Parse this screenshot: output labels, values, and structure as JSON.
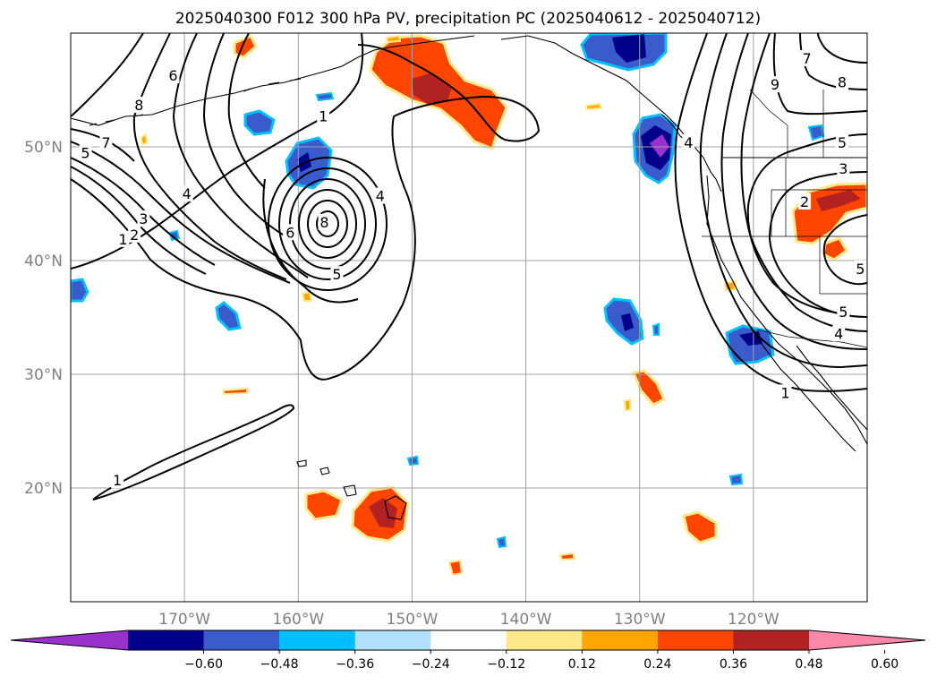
{
  "title": "2025040300 F012 300 hPa PV, precipitation PC (2025040612 - 2025040712)",
  "map": {
    "lon_range": [
      -180,
      -110
    ],
    "lat_range": [
      10,
      60
    ],
    "gridlines": true,
    "lon_ticks": [
      {
        "lon": -170,
        "label": "170°W"
      },
      {
        "lon": -160,
        "label": "160°W"
      },
      {
        "lon": -150,
        "label": "150°W"
      },
      {
        "lon": -140,
        "label": "140°W"
      },
      {
        "lon": -130,
        "label": "130°W"
      },
      {
        "lon": -120,
        "label": "120°W"
      }
    ],
    "lat_ticks": [
      {
        "lat": 50,
        "label": "50°N"
      },
      {
        "lat": 40,
        "label": "40°N"
      },
      {
        "lat": 30,
        "label": "30°N"
      },
      {
        "lat": 20,
        "label": "20°N"
      }
    ],
    "contour_labels": [
      {
        "text": "6",
        "lon": -171,
        "lat": 56.3
      },
      {
        "text": "8",
        "lon": -174,
        "lat": 53.7
      },
      {
        "text": "7",
        "lon": -176.9,
        "lat": 50.4
      },
      {
        "text": "5",
        "lon": -178.7,
        "lat": 49.5
      },
      {
        "text": "4",
        "lon": -169.8,
        "lat": 45.9
      },
      {
        "text": "3",
        "lon": -173.6,
        "lat": 43.7
      },
      {
        "text": "2",
        "lon": -174.4,
        "lat": 42.3
      },
      {
        "text": "1",
        "lon": -175.4,
        "lat": 41.9
      },
      {
        "text": "1",
        "lon": -157.8,
        "lat": 52.7
      },
      {
        "text": "4",
        "lon": -152.8,
        "lat": 45.7
      },
      {
        "text": "8",
        "lon": -157.7,
        "lat": 43.4
      },
      {
        "text": "6",
        "lon": -160.7,
        "lat": 42.5
      },
      {
        "text": "5",
        "lon": -156.6,
        "lat": 38.8
      },
      {
        "text": "1",
        "lon": -175.9,
        "lat": 20.7
      },
      {
        "text": "7",
        "lon": -115.3,
        "lat": 57.8
      },
      {
        "text": "9",
        "lon": -118.1,
        "lat": 55.5
      },
      {
        "text": "8",
        "lon": -112.2,
        "lat": 55.7
      },
      {
        "text": "4",
        "lon": -125.7,
        "lat": 50.4
      },
      {
        "text": "5",
        "lon": -112.2,
        "lat": 50.4
      },
      {
        "text": "3",
        "lon": -112.1,
        "lat": 48.1
      },
      {
        "text": "2",
        "lon": -115.5,
        "lat": 45.2
      },
      {
        "text": "5",
        "lon": -110.6,
        "lat": 39.3
      },
      {
        "text": "5",
        "lon": -112.1,
        "lat": 35.5
      },
      {
        "text": "4",
        "lon": -112.5,
        "lat": 33.6
      },
      {
        "text": "1",
        "lon": -117.2,
        "lat": 28.4
      }
    ]
  },
  "colorbar": {
    "ticks": [
      "−0.60",
      "−0.48",
      "−0.36",
      "−0.24",
      "−0.12",
      "0.12",
      "0.24",
      "0.36",
      "0.48",
      "0.60"
    ],
    "colors": [
      "#9932cc",
      "#00008b",
      "#3a5bcc",
      "#00bfff",
      "#b0e0ff",
      "#ffffff",
      "#ffe88a",
      "#ffa500",
      "#ff4500",
      "#b22222",
      "#ff88aa"
    ],
    "extend": "both"
  },
  "colors": {
    "neg_dark": "#00008b",
    "neg_mid": "#3a5bcc",
    "neg_light": "#00bfff",
    "neg_lightest": "#b0e0ff",
    "neg_extreme": "#9932cc",
    "pos_light": "#ffe88a",
    "pos_mid": "#ffa500",
    "pos_strong": "#ff4500",
    "pos_dark": "#b22222"
  }
}
